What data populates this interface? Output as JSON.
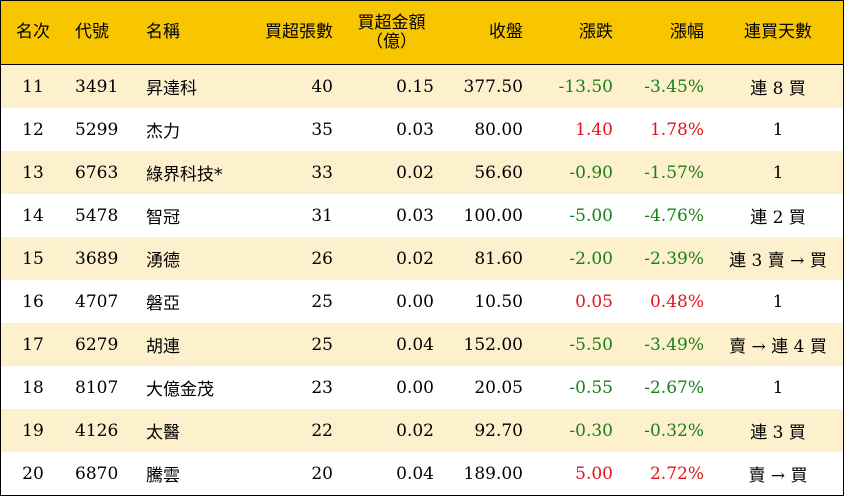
{
  "colors": {
    "header_bg": "#f8c600",
    "stripe_bg": "#fdf0cd",
    "up": "#e4141c",
    "down": "#1a7f1a"
  },
  "headers": {
    "rank": "名次",
    "code": "代號",
    "name": "名稱",
    "lots": "買超張數",
    "amount_line1": "買超金額",
    "amount_line2": "（億）",
    "close": "收盤",
    "change": "漲跌",
    "pct": "漲幅",
    "days": "連買天數"
  },
  "rows": [
    {
      "rank": "11",
      "code": "3491",
      "name": "昇達科",
      "lots": "40",
      "amount": "0.15",
      "close": "377.50",
      "change": "-13.50",
      "pct": "-3.45%",
      "days": "連 8 買",
      "dir": "down"
    },
    {
      "rank": "12",
      "code": "5299",
      "name": "杰力",
      "lots": "35",
      "amount": "0.03",
      "close": "80.00",
      "change": "1.40",
      "pct": "1.78%",
      "days": "1",
      "dir": "up"
    },
    {
      "rank": "13",
      "code": "6763",
      "name": "綠界科技*",
      "lots": "33",
      "amount": "0.02",
      "close": "56.60",
      "change": "-0.90",
      "pct": "-1.57%",
      "days": "1",
      "dir": "down"
    },
    {
      "rank": "14",
      "code": "5478",
      "name": "智冠",
      "lots": "31",
      "amount": "0.03",
      "close": "100.00",
      "change": "-5.00",
      "pct": "-4.76%",
      "days": "連 2 買",
      "dir": "down"
    },
    {
      "rank": "15",
      "code": "3689",
      "name": "湧德",
      "lots": "26",
      "amount": "0.02",
      "close": "81.60",
      "change": "-2.00",
      "pct": "-2.39%",
      "days": "連 3 賣 → 買",
      "dir": "down"
    },
    {
      "rank": "16",
      "code": "4707",
      "name": "磐亞",
      "lots": "25",
      "amount": "0.00",
      "close": "10.50",
      "change": "0.05",
      "pct": "0.48%",
      "days": "1",
      "dir": "up"
    },
    {
      "rank": "17",
      "code": "6279",
      "name": "胡連",
      "lots": "25",
      "amount": "0.04",
      "close": "152.00",
      "change": "-5.50",
      "pct": "-3.49%",
      "days": "賣 → 連 4 買",
      "dir": "down"
    },
    {
      "rank": "18",
      "code": "8107",
      "name": "大億金茂",
      "lots": "23",
      "amount": "0.00",
      "close": "20.05",
      "change": "-0.55",
      "pct": "-2.67%",
      "days": "1",
      "dir": "down"
    },
    {
      "rank": "19",
      "code": "4126",
      "name": "太醫",
      "lots": "22",
      "amount": "0.02",
      "close": "92.70",
      "change": "-0.30",
      "pct": "-0.32%",
      "days": "連 3 買",
      "dir": "down"
    },
    {
      "rank": "20",
      "code": "6870",
      "name": "騰雲",
      "lots": "20",
      "amount": "0.04",
      "close": "189.00",
      "change": "5.00",
      "pct": "2.72%",
      "days": "賣 → 買",
      "dir": "up"
    }
  ]
}
